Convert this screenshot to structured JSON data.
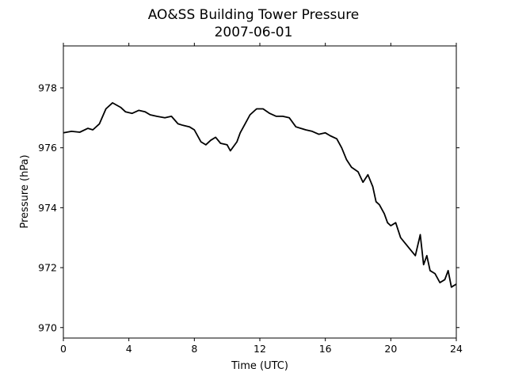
{
  "chart_data": {
    "type": "line",
    "title": "AO&SS Building Tower Pressure",
    "subtitle": "2007-06-01",
    "xlabel": "Time (UTC)",
    "ylabel": "Pressure (hPa)",
    "xlim": [
      0,
      24
    ],
    "ylim": [
      969.65,
      979.4
    ],
    "xticks": [
      0,
      4,
      8,
      12,
      16,
      20,
      24
    ],
    "yticks": [
      970,
      972,
      974,
      976,
      978
    ],
    "grid": false,
    "line_color": "#000000",
    "series": [
      {
        "x": [
          0,
          0.5,
          1,
          1.5,
          1.8,
          2.2,
          2.6,
          3.0,
          3.5,
          3.8,
          4.2,
          4.6,
          5.0,
          5.3,
          5.7,
          6.2,
          6.6,
          7.0,
          7.3,
          7.7,
          8.0,
          8.4,
          8.7,
          9.0,
          9.3,
          9.6,
          10.0,
          10.2,
          10.6,
          10.8,
          11.1,
          11.4,
          11.8,
          12.2,
          12.6,
          13.0,
          13.4,
          13.8,
          14.2,
          14.5,
          14.8,
          15.2,
          15.6,
          16.0,
          16.3,
          16.7,
          17.0,
          17.3,
          17.6,
          18.0,
          18.3,
          18.6,
          18.9,
          19.1,
          19.3,
          19.6,
          19.8,
          20.0,
          20.3,
          20.6,
          20.9,
          21.2,
          21.5,
          21.8,
          22.0,
          22.2,
          22.4,
          22.7,
          23.0,
          23.3,
          23.5,
          23.7,
          24.0
        ],
        "values": [
          976.5,
          976.55,
          976.52,
          976.65,
          976.6,
          976.8,
          977.3,
          977.5,
          977.35,
          977.2,
          977.15,
          977.25,
          977.2,
          977.1,
          977.05,
          977.0,
          977.05,
          976.8,
          976.75,
          976.7,
          976.6,
          976.2,
          976.1,
          976.25,
          976.35,
          976.15,
          976.1,
          975.9,
          976.2,
          976.5,
          976.8,
          977.1,
          977.3,
          977.3,
          977.15,
          977.05,
          977.05,
          977.0,
          976.7,
          976.65,
          976.6,
          976.55,
          976.45,
          976.5,
          976.4,
          976.3,
          976.0,
          975.6,
          975.35,
          975.2,
          974.85,
          975.1,
          974.7,
          974.2,
          974.1,
          973.8,
          973.5,
          973.4,
          973.5,
          973.0,
          972.8,
          972.6,
          972.4,
          973.1,
          972.1,
          972.4,
          971.9,
          971.8,
          971.5,
          971.6,
          971.9,
          971.35,
          971.45
        ]
      }
    ]
  }
}
